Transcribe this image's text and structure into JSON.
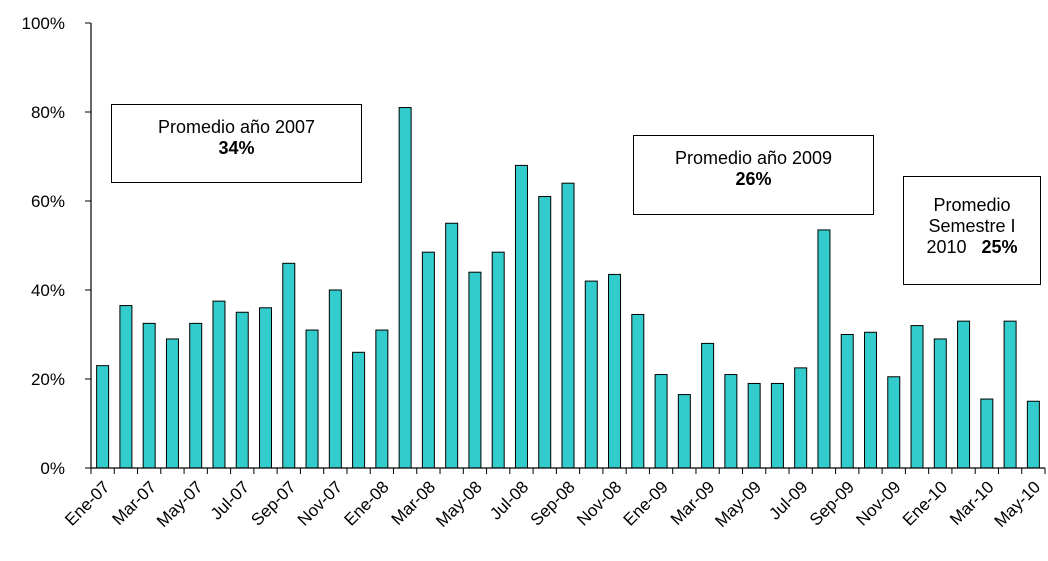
{
  "chart_data": {
    "type": "bar",
    "bar_color": "#33CCCC",
    "bar_stroke": "#000000",
    "ylim": [
      0,
      100
    ],
    "y_ticks": [
      "0%",
      "20%",
      "40%",
      "60%",
      "80%",
      "100%"
    ],
    "categories": [
      "Ene-07",
      "Feb-07",
      "Mar-07",
      "Abr-07",
      "May-07",
      "Jun-07",
      "Jul-07",
      "Ago-07",
      "Sep-07",
      "Oct-07",
      "Nov-07",
      "Dic-07",
      "Ene-08",
      "Feb-08",
      "Mar-08",
      "Abr-08",
      "May-08",
      "Jun-08",
      "Jul-08",
      "Ago-08",
      "Sep-08",
      "Oct-08",
      "Nov-08",
      "Dic-08",
      "Ene-09",
      "Feb-09",
      "Mar-09",
      "Abr-09",
      "May-09",
      "Jun-09",
      "Jul-09",
      "Ago-09",
      "Sep-09",
      "Oct-09",
      "Nov-09",
      "Dic-09",
      "Ene-10",
      "Feb-10",
      "Mar-10",
      "Abr-10",
      "May-10"
    ],
    "shown_x_labels": [
      "Ene-07",
      "Mar-07",
      "May-07",
      "Jul-07",
      "Sep-07",
      "Nov-07",
      "Ene-08",
      "Mar-08",
      "May-08",
      "Jul-08",
      "Sep-08",
      "Nov-08",
      "Ene-09",
      "Mar-09",
      "May-09",
      "Jul-09",
      "Sep-09",
      "Nov-09",
      "Ene-10",
      "Mar-10",
      "May-10"
    ],
    "values": [
      23,
      36.5,
      32.5,
      29,
      32.5,
      37.5,
      35,
      36,
      46,
      31,
      40,
      26,
      31,
      81,
      48.5,
      55,
      44,
      48.5,
      68,
      61,
      64,
      42,
      43.5,
      34.5,
      21,
      16.5,
      28,
      21,
      19,
      19,
      22.5,
      53.5,
      30,
      30.5,
      20.5,
      32,
      29,
      33,
      15.5,
      33,
      15
    ],
    "annotations": {
      "avg_2007": {
        "line1": "Promedio año 2007",
        "value": "34%"
      },
      "avg_2009": {
        "line1": "Promedio año 2009",
        "value": "26%"
      },
      "avg_2010": {
        "line1": "Promedio",
        "line2": "Semestre I",
        "line3_label": "2010",
        "value": "25%"
      }
    }
  }
}
